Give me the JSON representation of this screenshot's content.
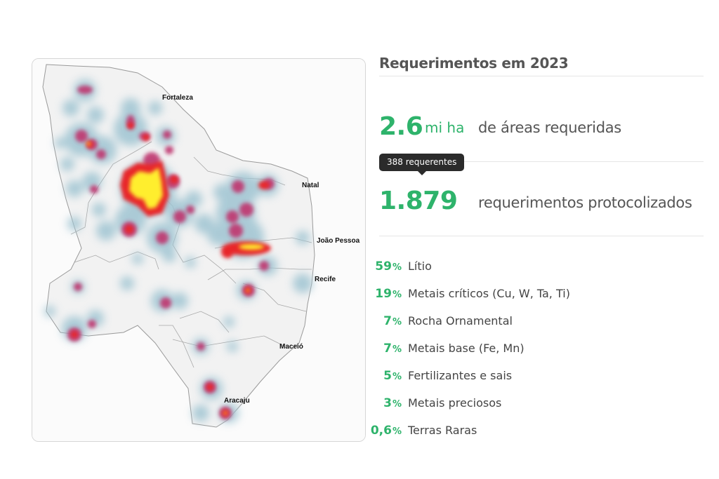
{
  "map": {
    "cities": [
      {
        "name": "Fortaleza"
      },
      {
        "name": "Natal"
      },
      {
        "name": "João Pessoa"
      },
      {
        "name": "Recife"
      },
      {
        "name": "Maceió"
      },
      {
        "name": "Aracaju"
      }
    ],
    "heat_colors": {
      "low": "#9fc4d2",
      "mid": "#c0346e",
      "high": "#e8262b",
      "peak": "#ffee2e"
    }
  },
  "summary": {
    "title": "Requerimentos em 2023",
    "area": {
      "value": "2.6",
      "unit": "mi ha",
      "label": "de áreas requeridas"
    },
    "requests": {
      "value": "1.879",
      "label": "requerimentos protocolizados",
      "tooltip": "388 requerentes"
    },
    "accent_color": "#2eb36b"
  },
  "categories": [
    {
      "pct": "59",
      "label": "Lítio"
    },
    {
      "pct": "19",
      "label": "Metais críticos (Cu, W, Ta, Ti)"
    },
    {
      "pct": "7",
      "label": "Rocha Ornamental"
    },
    {
      "pct": "7",
      "label": "Metais base (Fe, Mn)"
    },
    {
      "pct": "5",
      "label": "Fertilizantes e sais"
    },
    {
      "pct": "3",
      "label": "Metais preciosos"
    },
    {
      "pct": "0,6",
      "label": "Terras Raras"
    }
  ]
}
